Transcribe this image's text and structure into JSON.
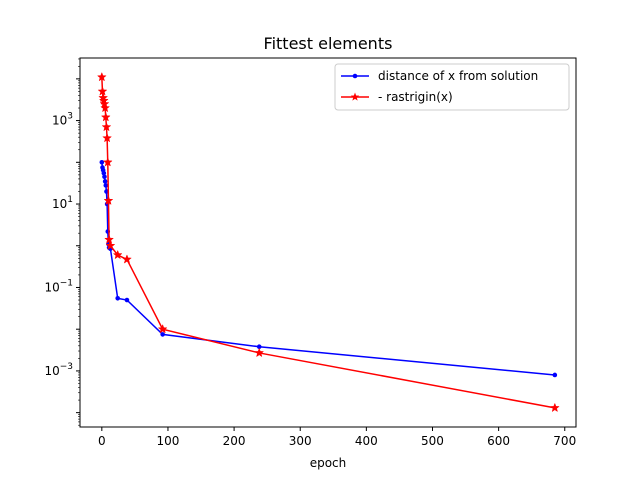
{
  "chart_data": {
    "type": "line",
    "title": "Fittest elements",
    "xlabel": "epoch",
    "ylabel": "",
    "yscale": "log",
    "xlim": [
      -33,
      717
    ],
    "ylim_log10": [
      -4.344,
      4.5
    ],
    "xticks": [
      0,
      100,
      200,
      300,
      400,
      500,
      600,
      700
    ],
    "xtick_labels": [
      "0",
      "100",
      "200",
      "300",
      "400",
      "500",
      "600",
      "700"
    ],
    "yticks_exp": [
      -3,
      -1,
      1,
      3
    ],
    "ytick_base": "10",
    "ytick_exps": [
      "−3",
      "−1",
      "1",
      "3"
    ],
    "legend_position": "upper right",
    "series": [
      {
        "name": "distance of x from solution",
        "color": "#0000ff",
        "marker": "dot",
        "x": [
          0,
          1,
          2,
          3,
          4,
          5,
          6,
          7,
          8,
          9,
          10,
          11,
          13,
          24,
          38,
          92,
          238,
          685
        ],
        "y": [
          100,
          75,
          65,
          55,
          45,
          35,
          28,
          20,
          10,
          2.2,
          1.1,
          0.9,
          0.85,
          0.055,
          0.05,
          0.0075,
          0.0038,
          0.0008
        ]
      },
      {
        "name": "- rastrigin(x)",
        "color": "#ff0000",
        "marker": "star",
        "x": [
          0,
          1,
          2,
          3,
          4,
          5,
          6,
          7,
          8,
          9,
          10,
          11,
          13,
          24,
          38,
          92,
          238,
          685
        ],
        "y": [
          11000,
          5000,
          3500,
          3000,
          2500,
          2000,
          1200,
          700,
          380,
          100,
          12,
          1.4,
          1.0,
          0.6,
          0.47,
          0.01,
          0.0027,
          0.00013
        ]
      }
    ]
  }
}
